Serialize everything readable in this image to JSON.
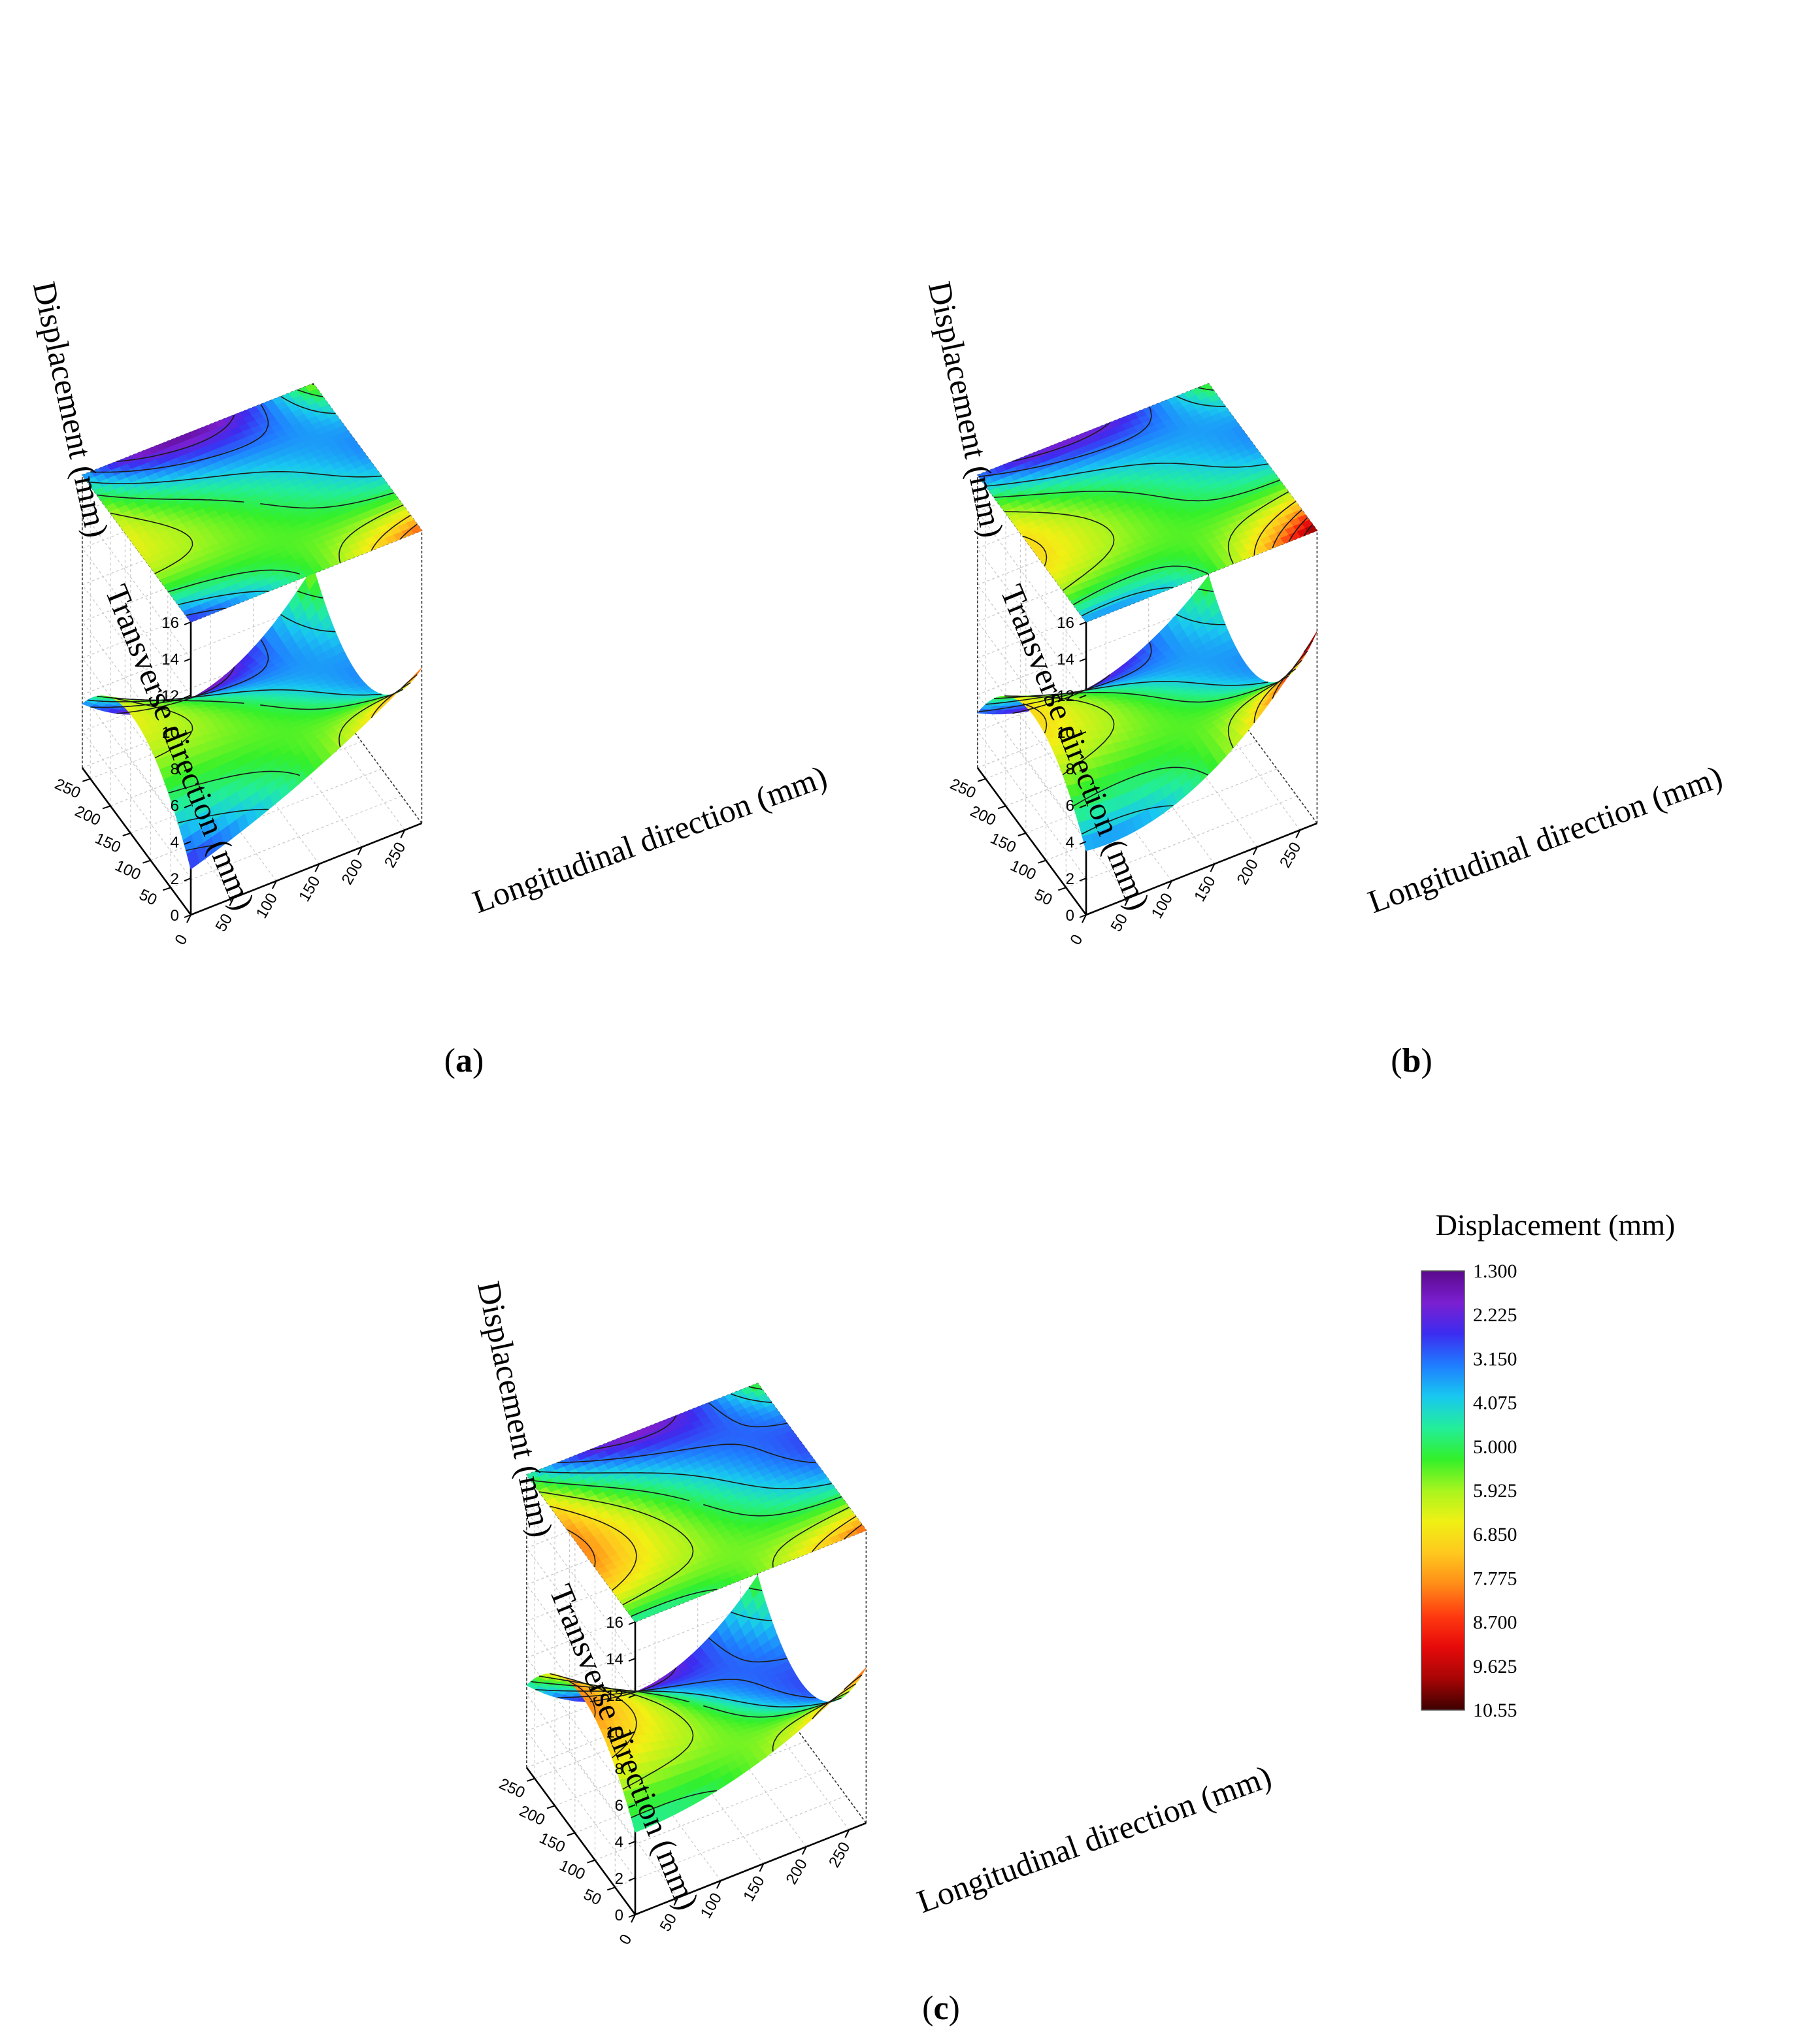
{
  "panels": [
    {
      "id": "a",
      "label_text": "(a)",
      "label_bold": "a",
      "zlabel": "Displacement (mm)",
      "xlabel": "Longitudinal direction (mm)",
      "ylabel": "Transverse direction (mm)",
      "z_ticks": [
        "0",
        "2",
        "4",
        "6",
        "8",
        "10",
        "12",
        "14",
        "16"
      ],
      "x_ticks": [
        "0",
        "50",
        "100",
        "150",
        "200",
        "250"
      ],
      "y_ticks": [
        "50",
        "100",
        "150",
        "200",
        "250"
      ]
    },
    {
      "id": "b",
      "label_text": "(b)",
      "label_bold": "b",
      "zlabel": "Displacement (mm)",
      "xlabel": "Longitudinal direction (mm)",
      "ylabel": "Transverse direction (mm)",
      "z_ticks": [
        "0",
        "2",
        "4",
        "6",
        "8",
        "10",
        "12",
        "14",
        "16"
      ],
      "x_ticks": [
        "0",
        "50",
        "100",
        "150",
        "200",
        "250"
      ],
      "y_ticks": [
        "50",
        "100",
        "150",
        "200",
        "250"
      ]
    },
    {
      "id": "c",
      "label_text": "(c)",
      "label_bold": "c",
      "zlabel": "Displacement (mm)",
      "xlabel": "Longitudinal direction (mm)",
      "ylabel": "Transverse direction (mm)",
      "z_ticks": [
        "0",
        "2",
        "4",
        "6",
        "8",
        "10",
        "12",
        "14",
        "16"
      ],
      "x_ticks": [
        "0",
        "50",
        "100",
        "150",
        "200",
        "250"
      ],
      "y_ticks": [
        "50",
        "100",
        "150",
        "200",
        "250"
      ]
    }
  ],
  "colorbar": {
    "title": "Displacement (mm)",
    "ticks": [
      "1.300",
      "2.225",
      "3.150",
      "4.075",
      "5.000",
      "5.925",
      "6.850",
      "7.775",
      "8.700",
      "9.625",
      "10.55"
    ],
    "colors": [
      "#5a0a8c",
      "#7b1fd0",
      "#3c2cf0",
      "#1f7cff",
      "#18c8f0",
      "#22ee9a",
      "#33f02a",
      "#a8f51e",
      "#f0f014",
      "#ffc81e",
      "#ff8c18",
      "#ff3a10",
      "#e60a0a",
      "#a80505",
      "#3c0000"
    ]
  },
  "chart_data": [
    {
      "type": "surface3d",
      "panel": "a",
      "xlabel": "Longitudinal direction (mm)",
      "ylabel": "Transverse direction (mm)",
      "zlabel": "Displacement (mm)",
      "xlim": [
        0,
        270
      ],
      "ylim": [
        0,
        270
      ],
      "zlim": [
        0,
        16
      ],
      "x_ticks": [
        0,
        50,
        100,
        150,
        200,
        250
      ],
      "y_ticks": [
        50,
        100,
        150,
        200,
        250
      ],
      "z_ticks": [
        0,
        2,
        4,
        6,
        8,
        10,
        12,
        14,
        16
      ],
      "surface_grid_x": [
        0,
        135,
        270
      ],
      "surface_grid_y": [
        0,
        135,
        270
      ],
      "displacement_z": [
        [
          2.5,
          5.0,
          8.5
        ],
        [
          6.5,
          5.0,
          3.5
        ],
        [
          3.5,
          1.5,
          6.0
        ]
      ],
      "projected_contour_plane": true,
      "contour_levels": [
        1.3,
        2.225,
        3.15,
        4.075,
        5.0,
        5.925,
        6.85,
        7.775,
        8.7,
        9.625,
        10.55
      ]
    },
    {
      "type": "surface3d",
      "panel": "b",
      "xlabel": "Longitudinal direction (mm)",
      "ylabel": "Transverse direction (mm)",
      "zlabel": "Displacement (mm)",
      "xlim": [
        0,
        270
      ],
      "ylim": [
        0,
        270
      ],
      "zlim": [
        0,
        16
      ],
      "x_ticks": [
        0,
        50,
        100,
        150,
        200,
        250
      ],
      "y_ticks": [
        50,
        100,
        150,
        200,
        250
      ],
      "z_ticks": [
        0,
        2,
        4,
        6,
        8,
        10,
        12,
        14,
        16
      ],
      "surface_grid_x": [
        0,
        135,
        270
      ],
      "surface_grid_y": [
        0,
        135,
        270
      ],
      "displacement_z": [
        [
          3.5,
          4.8,
          10.5
        ],
        [
          7.0,
          5.2,
          3.8
        ],
        [
          3.0,
          2.0,
          5.5
        ]
      ],
      "projected_contour_plane": true,
      "contour_levels": [
        1.3,
        2.225,
        3.15,
        4.075,
        5.0,
        5.925,
        6.85,
        7.775,
        8.7,
        9.625,
        10.55
      ]
    },
    {
      "type": "surface3d",
      "panel": "c",
      "xlabel": "Longitudinal direction (mm)",
      "ylabel": "Transverse direction (mm)",
      "zlabel": "Displacement (mm)",
      "xlim": [
        0,
        270
      ],
      "ylim": [
        0,
        270
      ],
      "zlim": [
        0,
        16
      ],
      "x_ticks": [
        0,
        50,
        100,
        150,
        200,
        250
      ],
      "y_ticks": [
        50,
        100,
        150,
        200,
        250
      ],
      "z_ticks": [
        0,
        2,
        4,
        6,
        8,
        10,
        12,
        14,
        16
      ],
      "surface_grid_x": [
        0,
        135,
        270
      ],
      "surface_grid_y": [
        0,
        135,
        270
      ],
      "displacement_z": [
        [
          4.5,
          5.5,
          8.5
        ],
        [
          8.0,
          5.0,
          3.0
        ],
        [
          4.5,
          1.8,
          5.5
        ]
      ],
      "projected_contour_plane": true,
      "contour_levels": [
        1.3,
        2.225,
        3.15,
        4.075,
        5.0,
        5.925,
        6.85,
        7.775,
        8.7,
        9.625,
        10.55
      ]
    }
  ]
}
